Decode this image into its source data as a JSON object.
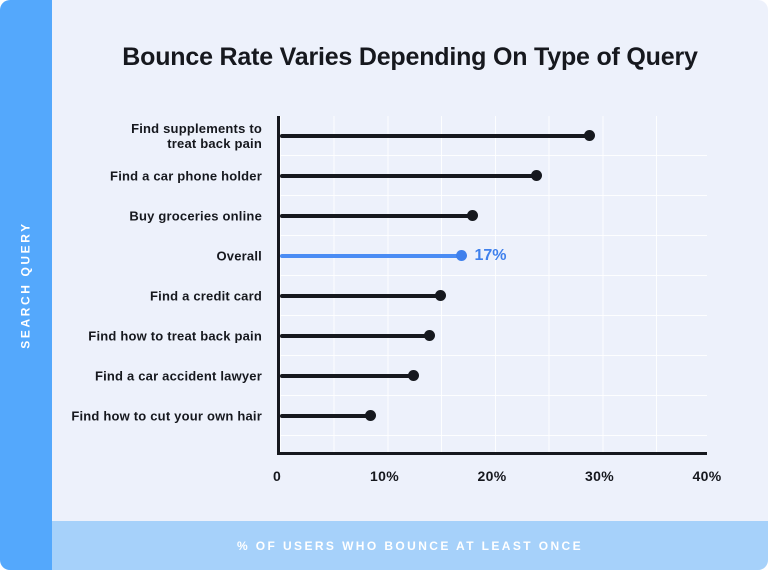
{
  "title": "Bounce Rate Varies Depending On Type of Query",
  "sidebar": {
    "label": "SEARCH QUERY"
  },
  "footer": {
    "label": "% OF USERS WHO BOUNCE AT LEAST ONCE"
  },
  "colors": {
    "card_bg": "#edf1fb",
    "sidebar_bg": "#54a8fc",
    "footer_bg": "#a6d1fa",
    "ink": "#16181e",
    "accent_line": "#4a8cf4",
    "accent": "#3f80ec",
    "gridline": "#ffffff"
  },
  "chart_data": {
    "type": "bar",
    "style": "horizontal-lollipop",
    "title": "Bounce Rate Varies Depending On Type of Query",
    "xlabel": "% OF USERS WHO BOUNCE AT LEAST ONCE",
    "ylabel": "SEARCH QUERY",
    "categories": [
      "Find supplements to\ntreat back pain",
      "Find a car phone holder",
      "Buy groceries online",
      "Overall",
      "Find a credit card",
      "Find how to treat back pain",
      "Find a car accident lawyer",
      "Find how to cut your own hair"
    ],
    "values": [
      29,
      24,
      18,
      17,
      15,
      14,
      12.5,
      8.5
    ],
    "highlight": {
      "index": 3,
      "category": "Overall",
      "label": "17%"
    },
    "xlim": [
      0,
      40
    ],
    "x_ticks": [
      {
        "value": 0,
        "label": "0"
      },
      {
        "value": 10,
        "label": "10%"
      },
      {
        "value": 20,
        "label": "20%"
      },
      {
        "value": 30,
        "label": "30%"
      },
      {
        "value": 40,
        "label": "40%"
      }
    ],
    "grid": true,
    "legend": false
  }
}
